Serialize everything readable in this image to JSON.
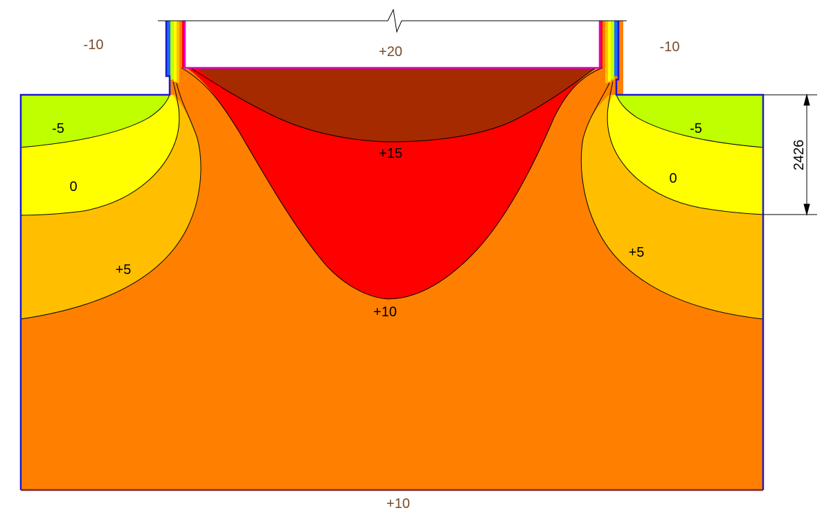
{
  "boundary_labels": {
    "outside_left": "-10",
    "outside_right": "-10",
    "inside_top": "+20",
    "ground_bottom": "+10"
  },
  "isotherm_labels": {
    "left_minus5": "-5",
    "left_zero": "0",
    "left_plus5": "+5",
    "right_minus5": "-5",
    "right_zero": "0",
    "right_plus5": "+5",
    "center_plus15": "+15",
    "center_plus10": "+10"
  },
  "dimension": {
    "value": "2426"
  },
  "colors": {
    "band_minus5_to_0": "#bfff00",
    "band_0_to_5": "#ffff00",
    "band_5_to_10": "#ffbf00",
    "band_10_to_15": "#ff8000",
    "band_15_to_20": "#ff0000",
    "band_above_20": "#a52a00",
    "boundary_outer": "#1a1acc",
    "boundary_inner": "#e000e0",
    "boundary_ground": "#7a2a2a",
    "isoline": "#000000",
    "bc_text": "#7a4a2a"
  }
}
